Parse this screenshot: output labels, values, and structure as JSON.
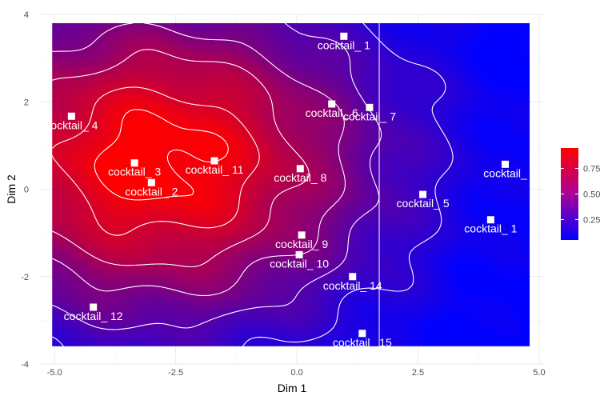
{
  "chart_data": {
    "type": "heatmap",
    "xlabel": "Dim 1",
    "ylabel": "Dim 2",
    "xlim": [
      -5.3,
      5.1
    ],
    "ylim": [
      -4,
      4
    ],
    "x_ticks": [
      -5.0,
      -2.5,
      0.0,
      2.5,
      5.0
    ],
    "x_tick_labels": [
      "-5.0",
      "-2.5",
      "0.0",
      "2.5",
      "5.0"
    ],
    "y_ticks": [
      -4,
      -2,
      0,
      2,
      4
    ],
    "y_tick_labels": [
      "-4",
      "-2",
      "0",
      "2",
      "4"
    ],
    "grid": true,
    "surface_extent": {
      "x": [
        -5.05,
        4.8
      ],
      "y": [
        -3.6,
        3.8
      ]
    },
    "color_scale": {
      "low": "#0000ff",
      "high": "#ff0000",
      "range": [
        0.05,
        0.95
      ]
    },
    "hotspot": [
      -2.9,
      0.65
    ],
    "legend": {
      "position": "right",
      "ticks": [
        0.25,
        0.5,
        0.75
      ],
      "tick_labels": [
        "0.25",
        "0.50",
        "0.75"
      ]
    },
    "vertical_line_x": 1.7,
    "points": [
      {
        "label": "cocktail_ 1",
        "x": 4.0,
        "y": -0.7
      },
      {
        "label": "cocktail_ 2",
        "x": -3.0,
        "y": 0.15
      },
      {
        "label": "cocktail_ 3",
        "x": -3.35,
        "y": 0.6
      },
      {
        "label": "cocktail_ 4",
        "x": -4.65,
        "y": 1.67
      },
      {
        "label": "cocktail_ 5",
        "x": 2.6,
        "y": -0.12
      },
      {
        "label": "cocktail_ 6",
        "x": 0.72,
        "y": 1.95
      },
      {
        "label": "cocktail_ 7",
        "x": 1.5,
        "y": 1.87
      },
      {
        "label": "cocktail_ 8",
        "x": 0.07,
        "y": 0.47
      },
      {
        "label": "cocktail_ 9",
        "x": 0.1,
        "y": -1.05
      },
      {
        "label": "cocktail_ 10",
        "x": 0.05,
        "y": -1.5
      },
      {
        "label": "cocktail_ 11",
        "x": -1.7,
        "y": 0.65
      },
      {
        "label": "cocktail_ 12",
        "x": -4.2,
        "y": -2.7
      },
      {
        "label": "cocktail_ 14",
        "x": 1.15,
        "y": -2.0
      },
      {
        "label": "cocktail_ 15",
        "x": 1.35,
        "y": -3.3
      },
      {
        "label": "cocktail_ 1",
        "x": 0.97,
        "y": 3.5
      },
      {
        "label": "cocktail_",
        "x": 4.3,
        "y": 0.57
      }
    ],
    "contour_levels": [
      0.2,
      0.35,
      0.5,
      0.65,
      0.8,
      0.92
    ]
  }
}
